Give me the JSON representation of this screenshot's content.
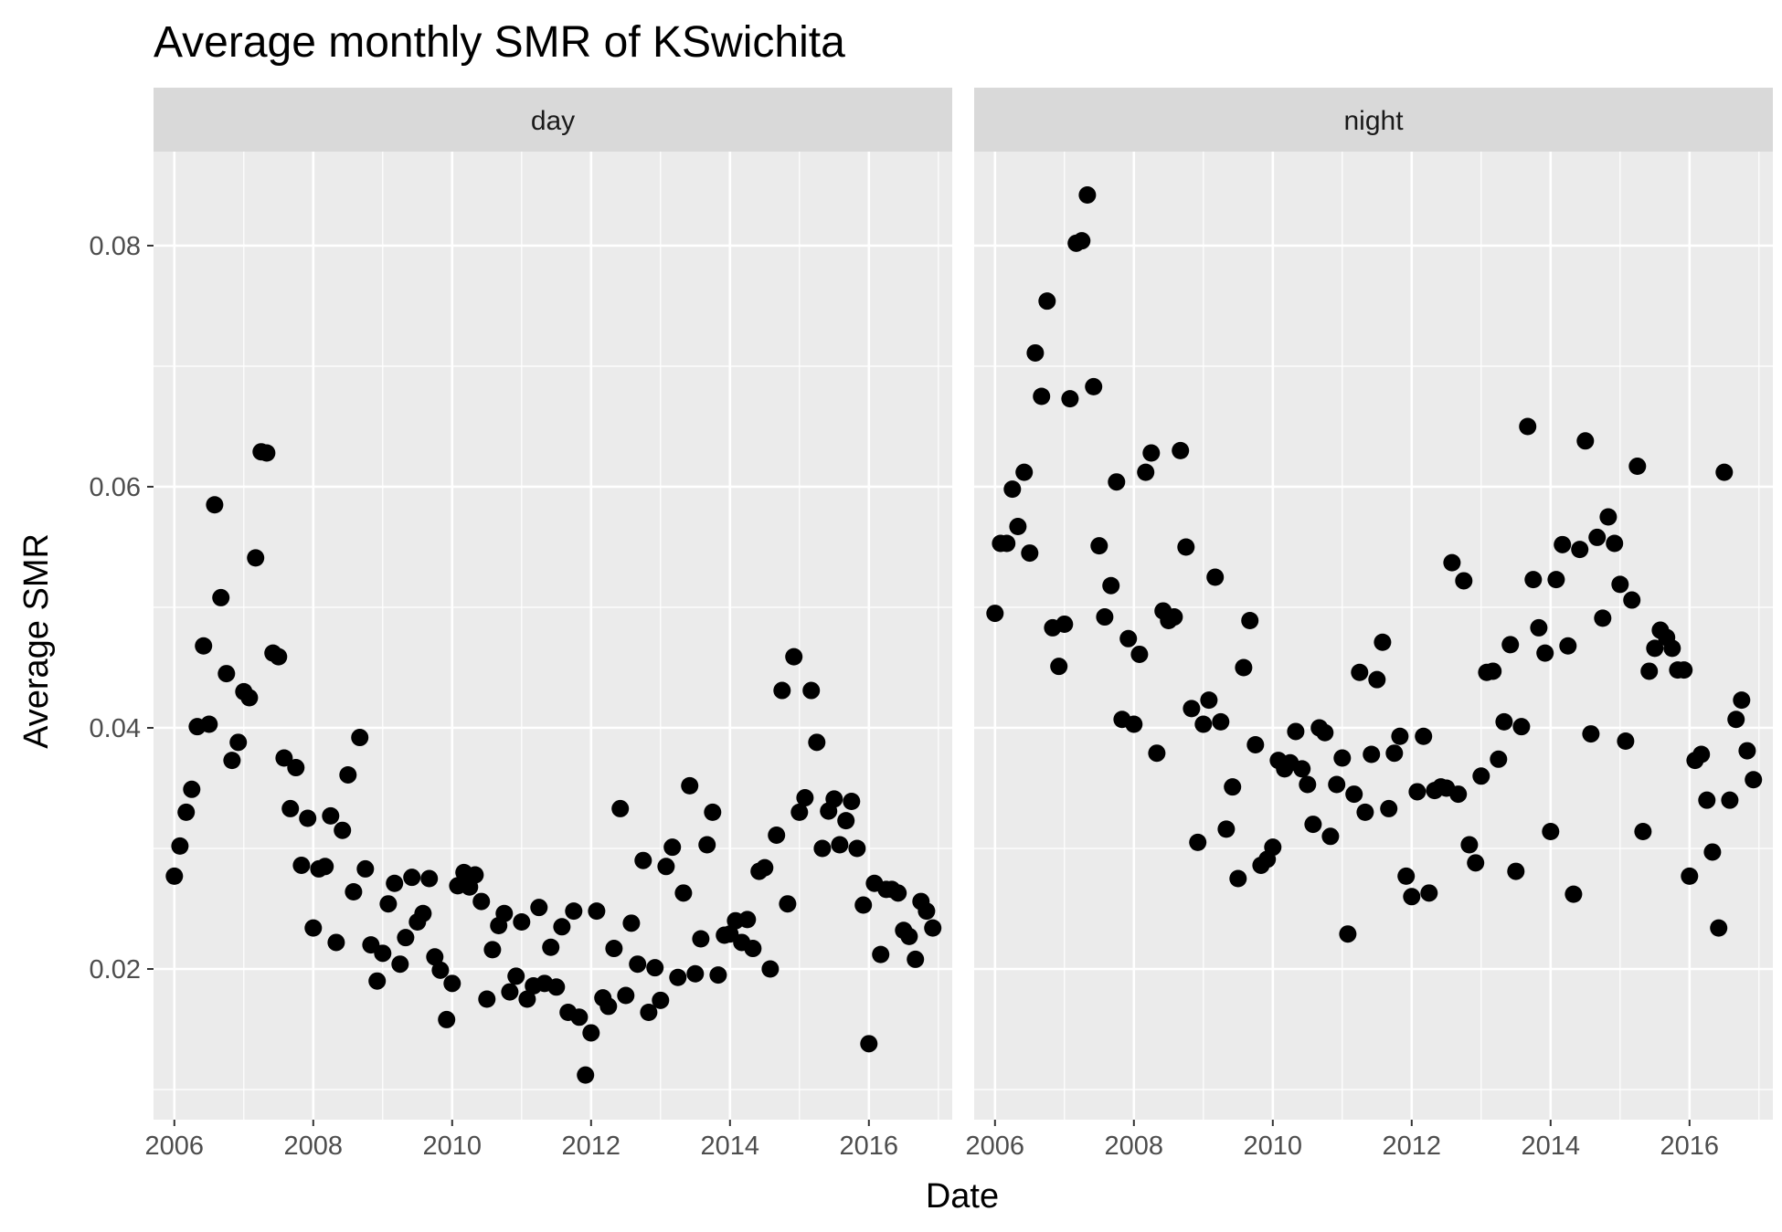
{
  "chart_data": {
    "type": "scatter",
    "title": "Average monthly SMR of KSwichita",
    "xlabel": "Date",
    "ylabel": "Average SMR",
    "x_ticks": [
      "2006",
      "2008",
      "2010",
      "2012",
      "2014",
      "2016"
    ],
    "y_ticks": [
      "0.02",
      "0.04",
      "0.06",
      "0.08"
    ],
    "xlim": [
      2005.7,
      2017.2
    ],
    "ylim": [
      0.0075,
      0.0878
    ],
    "grid": true,
    "legend": "none",
    "colors": {
      "panel_bg": "#ebebeb",
      "strip_bg": "#d9d9d9",
      "grid": "#ffffff",
      "point": "#000000"
    },
    "panels": [
      {
        "label": "day",
        "points": [
          [
            2006.0,
            0.0277
          ],
          [
            2006.08,
            0.0302
          ],
          [
            2006.17,
            0.033
          ],
          [
            2006.25,
            0.0349
          ],
          [
            2006.33,
            0.0401
          ],
          [
            2006.42,
            0.0468
          ],
          [
            2006.5,
            0.0403
          ],
          [
            2006.58,
            0.0585
          ],
          [
            2006.67,
            0.0508
          ],
          [
            2006.75,
            0.0445
          ],
          [
            2006.83,
            0.0373
          ],
          [
            2006.92,
            0.0388
          ],
          [
            2007.0,
            0.043
          ],
          [
            2007.08,
            0.0425
          ],
          [
            2007.17,
            0.0541
          ],
          [
            2007.25,
            0.0629
          ],
          [
            2007.33,
            0.0628
          ],
          [
            2007.42,
            0.0462
          ],
          [
            2007.5,
            0.0459
          ],
          [
            2007.58,
            0.0375
          ],
          [
            2007.67,
            0.0333
          ],
          [
            2007.75,
            0.0367
          ],
          [
            2007.83,
            0.0286
          ],
          [
            2007.92,
            0.0325
          ],
          [
            2008.0,
            0.0234
          ],
          [
            2008.08,
            0.0283
          ],
          [
            2008.17,
            0.0285
          ],
          [
            2008.25,
            0.0327
          ],
          [
            2008.33,
            0.0222
          ],
          [
            2008.42,
            0.0315
          ],
          [
            2008.5,
            0.0361
          ],
          [
            2008.58,
            0.0264
          ],
          [
            2008.67,
            0.0392
          ],
          [
            2008.75,
            0.0283
          ],
          [
            2008.83,
            0.022
          ],
          [
            2008.92,
            0.019
          ],
          [
            2009.0,
            0.0213
          ],
          [
            2009.08,
            0.0254
          ],
          [
            2009.17,
            0.0271
          ],
          [
            2009.25,
            0.0204
          ],
          [
            2009.33,
            0.0226
          ],
          [
            2009.42,
            0.0276
          ],
          [
            2009.5,
            0.0239
          ],
          [
            2009.58,
            0.0246
          ],
          [
            2009.67,
            0.0275
          ],
          [
            2009.75,
            0.021
          ],
          [
            2009.83,
            0.0199
          ],
          [
            2009.92,
            0.0158
          ],
          [
            2010.0,
            0.0188
          ],
          [
            2010.08,
            0.0269
          ],
          [
            2010.17,
            0.028
          ],
          [
            2010.25,
            0.0268
          ],
          [
            2010.33,
            0.0278
          ],
          [
            2010.42,
            0.0256
          ],
          [
            2010.5,
            0.0175
          ],
          [
            2010.58,
            0.0216
          ],
          [
            2010.67,
            0.0236
          ],
          [
            2010.75,
            0.0246
          ],
          [
            2010.83,
            0.0181
          ],
          [
            2010.92,
            0.0194
          ],
          [
            2011.0,
            0.0239
          ],
          [
            2011.08,
            0.0175
          ],
          [
            2011.17,
            0.0186
          ],
          [
            2011.25,
            0.0251
          ],
          [
            2011.33,
            0.0188
          ],
          [
            2011.42,
            0.0218
          ],
          [
            2011.5,
            0.0185
          ],
          [
            2011.58,
            0.0235
          ],
          [
            2011.67,
            0.0164
          ],
          [
            2011.75,
            0.0248
          ],
          [
            2011.83,
            0.016
          ],
          [
            2011.92,
            0.0112
          ],
          [
            2012.0,
            0.0147
          ],
          [
            2012.08,
            0.0248
          ],
          [
            2012.17,
            0.0176
          ],
          [
            2012.25,
            0.0169
          ],
          [
            2012.33,
            0.0217
          ],
          [
            2012.42,
            0.0333
          ],
          [
            2012.5,
            0.0178
          ],
          [
            2012.58,
            0.0238
          ],
          [
            2012.67,
            0.0204
          ],
          [
            2012.75,
            0.029
          ],
          [
            2012.83,
            0.0164
          ],
          [
            2012.92,
            0.0201
          ],
          [
            2013.0,
            0.0174
          ],
          [
            2013.08,
            0.0285
          ],
          [
            2013.17,
            0.0301
          ],
          [
            2013.25,
            0.0193
          ],
          [
            2013.33,
            0.0263
          ],
          [
            2013.42,
            0.0352
          ],
          [
            2013.5,
            0.0196
          ],
          [
            2013.58,
            0.0225
          ],
          [
            2013.67,
            0.0303
          ],
          [
            2013.75,
            0.033
          ],
          [
            2013.83,
            0.0195
          ],
          [
            2013.92,
            0.0228
          ],
          [
            2014.0,
            0.0229
          ],
          [
            2014.08,
            0.024
          ],
          [
            2014.17,
            0.0222
          ],
          [
            2014.25,
            0.0241
          ],
          [
            2014.33,
            0.0217
          ],
          [
            2014.42,
            0.0281
          ],
          [
            2014.5,
            0.0284
          ],
          [
            2014.58,
            0.02
          ],
          [
            2014.67,
            0.0311
          ],
          [
            2014.75,
            0.0431
          ],
          [
            2014.83,
            0.0254
          ],
          [
            2014.92,
            0.0459
          ],
          [
            2015.0,
            0.033
          ],
          [
            2015.08,
            0.0342
          ],
          [
            2015.17,
            0.0431
          ],
          [
            2015.25,
            0.0388
          ],
          [
            2015.33,
            0.03
          ],
          [
            2015.42,
            0.0331
          ],
          [
            2015.5,
            0.0341
          ],
          [
            2015.58,
            0.0303
          ],
          [
            2015.67,
            0.0323
          ],
          [
            2015.75,
            0.0339
          ],
          [
            2015.83,
            0.03
          ],
          [
            2015.92,
            0.0253
          ],
          [
            2016.0,
            0.0138
          ],
          [
            2016.08,
            0.0271
          ],
          [
            2016.17,
            0.0212
          ],
          [
            2016.25,
            0.0266
          ],
          [
            2016.33,
            0.0266
          ],
          [
            2016.42,
            0.0263
          ],
          [
            2016.5,
            0.0232
          ],
          [
            2016.58,
            0.0227
          ],
          [
            2016.67,
            0.0208
          ],
          [
            2016.75,
            0.0256
          ],
          [
            2016.83,
            0.0248
          ],
          [
            2016.92,
            0.0234
          ]
        ]
      },
      {
        "label": "night",
        "points": [
          [
            2006.0,
            0.0495
          ],
          [
            2006.08,
            0.0553
          ],
          [
            2006.17,
            0.0553
          ],
          [
            2006.25,
            0.0598
          ],
          [
            2006.33,
            0.0567
          ],
          [
            2006.42,
            0.0612
          ],
          [
            2006.5,
            0.0545
          ],
          [
            2006.58,
            0.0711
          ],
          [
            2006.67,
            0.0675
          ],
          [
            2006.75,
            0.0754
          ],
          [
            2006.83,
            0.0483
          ],
          [
            2006.92,
            0.0451
          ],
          [
            2007.0,
            0.0486
          ],
          [
            2007.08,
            0.0673
          ],
          [
            2007.17,
            0.0802
          ],
          [
            2007.25,
            0.0804
          ],
          [
            2007.33,
            0.0842
          ],
          [
            2007.42,
            0.0683
          ],
          [
            2007.5,
            0.0551
          ],
          [
            2007.58,
            0.0492
          ],
          [
            2007.67,
            0.0518
          ],
          [
            2007.75,
            0.0604
          ],
          [
            2007.83,
            0.0407
          ],
          [
            2007.92,
            0.0474
          ],
          [
            2008.0,
            0.0403
          ],
          [
            2008.08,
            0.0461
          ],
          [
            2008.17,
            0.0612
          ],
          [
            2008.25,
            0.0628
          ],
          [
            2008.33,
            0.0379
          ],
          [
            2008.42,
            0.0497
          ],
          [
            2008.5,
            0.0489
          ],
          [
            2008.58,
            0.0492
          ],
          [
            2008.67,
            0.063
          ],
          [
            2008.75,
            0.055
          ],
          [
            2008.83,
            0.0416
          ],
          [
            2008.92,
            0.0305
          ],
          [
            2009.0,
            0.0403
          ],
          [
            2009.08,
            0.0423
          ],
          [
            2009.17,
            0.0525
          ],
          [
            2009.25,
            0.0405
          ],
          [
            2009.33,
            0.0316
          ],
          [
            2009.42,
            0.0351
          ],
          [
            2009.5,
            0.0275
          ],
          [
            2009.58,
            0.045
          ],
          [
            2009.67,
            0.0489
          ],
          [
            2009.75,
            0.0386
          ],
          [
            2009.83,
            0.0286
          ],
          [
            2009.92,
            0.0291
          ],
          [
            2010.0,
            0.0301
          ],
          [
            2010.08,
            0.0373
          ],
          [
            2010.17,
            0.0366
          ],
          [
            2010.25,
            0.0371
          ],
          [
            2010.33,
            0.0397
          ],
          [
            2010.42,
            0.0366
          ],
          [
            2010.5,
            0.0353
          ],
          [
            2010.58,
            0.032
          ],
          [
            2010.67,
            0.04
          ],
          [
            2010.75,
            0.0396
          ],
          [
            2010.83,
            0.031
          ],
          [
            2010.92,
            0.0353
          ],
          [
            2011.0,
            0.0375
          ],
          [
            2011.08,
            0.0229
          ],
          [
            2011.17,
            0.0345
          ],
          [
            2011.25,
            0.0446
          ],
          [
            2011.33,
            0.033
          ],
          [
            2011.42,
            0.0378
          ],
          [
            2011.5,
            0.044
          ],
          [
            2011.58,
            0.0471
          ],
          [
            2011.67,
            0.0333
          ],
          [
            2011.75,
            0.0379
          ],
          [
            2011.83,
            0.0393
          ],
          [
            2011.92,
            0.0277
          ],
          [
            2012.0,
            0.026
          ],
          [
            2012.08,
            0.0347
          ],
          [
            2012.17,
            0.0393
          ],
          [
            2012.25,
            0.0263
          ],
          [
            2012.33,
            0.0348
          ],
          [
            2012.42,
            0.0351
          ],
          [
            2012.5,
            0.035
          ],
          [
            2012.58,
            0.0537
          ],
          [
            2012.67,
            0.0345
          ],
          [
            2012.75,
            0.0522
          ],
          [
            2012.83,
            0.0303
          ],
          [
            2012.92,
            0.0288
          ],
          [
            2013.0,
            0.036
          ],
          [
            2013.08,
            0.0446
          ],
          [
            2013.17,
            0.0447
          ],
          [
            2013.25,
            0.0374
          ],
          [
            2013.33,
            0.0405
          ],
          [
            2013.42,
            0.0469
          ],
          [
            2013.5,
            0.0281
          ],
          [
            2013.58,
            0.0401
          ],
          [
            2013.67,
            0.065
          ],
          [
            2013.75,
            0.0523
          ],
          [
            2013.83,
            0.0483
          ],
          [
            2013.92,
            0.0462
          ],
          [
            2014.0,
            0.0314
          ],
          [
            2014.08,
            0.0523
          ],
          [
            2014.17,
            0.0552
          ],
          [
            2014.25,
            0.0468
          ],
          [
            2014.33,
            0.0262
          ],
          [
            2014.42,
            0.0548
          ],
          [
            2014.5,
            0.0638
          ],
          [
            2014.58,
            0.0395
          ],
          [
            2014.67,
            0.0558
          ],
          [
            2014.75,
            0.0491
          ],
          [
            2014.83,
            0.0575
          ],
          [
            2014.92,
            0.0553
          ],
          [
            2015.0,
            0.0519
          ],
          [
            2015.08,
            0.0389
          ],
          [
            2015.17,
            0.0506
          ],
          [
            2015.25,
            0.0617
          ],
          [
            2015.33,
            0.0314
          ],
          [
            2015.42,
            0.0447
          ],
          [
            2015.5,
            0.0466
          ],
          [
            2015.58,
            0.0481
          ],
          [
            2015.67,
            0.0475
          ],
          [
            2015.75,
            0.0466
          ],
          [
            2015.83,
            0.0448
          ],
          [
            2015.92,
            0.0448
          ],
          [
            2016.0,
            0.0277
          ],
          [
            2016.08,
            0.0373
          ],
          [
            2016.17,
            0.0378
          ],
          [
            2016.25,
            0.034
          ],
          [
            2016.33,
            0.0297
          ],
          [
            2016.42,
            0.0234
          ],
          [
            2016.5,
            0.0612
          ],
          [
            2016.58,
            0.034
          ],
          [
            2016.67,
            0.0407
          ],
          [
            2016.75,
            0.0423
          ],
          [
            2016.83,
            0.0381
          ],
          [
            2016.92,
            0.0357
          ]
        ]
      }
    ]
  }
}
